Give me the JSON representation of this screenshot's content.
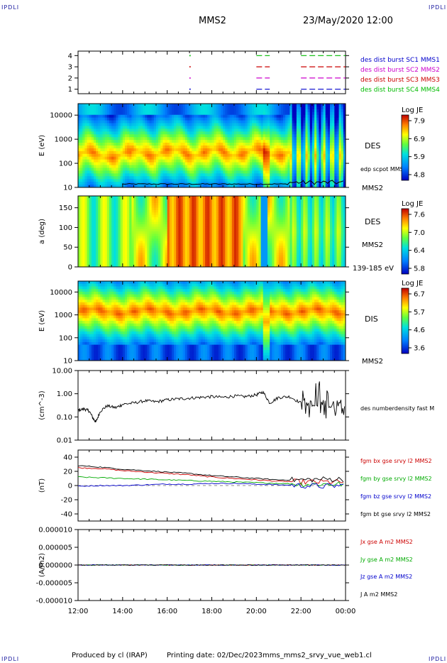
{
  "header": {
    "corner_left": "IPDLI",
    "corner_right": "IPDLI",
    "spacecraft": "MMS2",
    "datetime": "23/May/2020 12:00"
  },
  "footer": {
    "produced_by": "Produced by cl (IRAP)",
    "printing_date": "Printing date: 02/Dec/2023",
    "filename": "mms_mms2_srvy_vue_web1.cl",
    "corner_left": "IPDLI",
    "corner_right": "IPDLI"
  },
  "chart_data": [
    {
      "type": "scatter",
      "panel": "availability",
      "y_ticks": [
        "1",
        "2",
        "3",
        "4"
      ],
      "ylim": [
        0.6,
        4.4
      ],
      "series": [
        {
          "name": "des dist burst SC1 MMS1",
          "color": "#0000cc",
          "y": 1,
          "intervals": [
            [
              20.0,
              20.6
            ],
            [
              22.0,
              24.0
            ]
          ]
        },
        {
          "name": "des dist burst SC2 MMS2",
          "color": "#cc00cc",
          "y": 2,
          "intervals": [
            [
              20.0,
              20.6
            ],
            [
              22.0,
              24.0
            ]
          ]
        },
        {
          "name": "des dist burst SC3 MMS3",
          "color": "#cc0000",
          "y": 3,
          "intervals": [
            [
              20.0,
              20.6
            ],
            [
              22.0,
              24.0
            ]
          ]
        },
        {
          "name": "des dist burst SC4 MMS4",
          "color": "#00bb00",
          "y": 4,
          "intervals": [
            [
              20.0,
              20.6
            ],
            [
              22.0,
              24.0
            ]
          ]
        }
      ],
      "markers_x": [
        17.0
      ]
    },
    {
      "type": "heatmap",
      "panel": "des-energy",
      "ylabel": "E (eV)",
      "y_ticks": [
        "10",
        "100",
        "1000",
        "10000"
      ],
      "ylim_log": [
        10,
        30000
      ],
      "side_label": "DES",
      "side_label2": "MMS2",
      "overlay_label": "edp scpot MMS2",
      "colorbar": {
        "title": "Log JE",
        "ticks": [
          "7.9",
          "6.9",
          "5.9",
          "4.8"
        ]
      }
    },
    {
      "type": "heatmap",
      "panel": "des-pitch",
      "ylabel": "a (deg)",
      "y_ticks": [
        "0",
        "50",
        "100",
        "150"
      ],
      "ylim": [
        0,
        180
      ],
      "side_label": "DES",
      "side_label2": "MMS2",
      "side_label3": "139-185 eV",
      "colorbar": {
        "title": "Log JE",
        "ticks": [
          "7.6",
          "7.0",
          "6.4",
          "5.8"
        ]
      }
    },
    {
      "type": "heatmap",
      "panel": "dis-energy",
      "ylabel": "E (eV)",
      "y_ticks": [
        "10",
        "100",
        "1000",
        "10000"
      ],
      "ylim_log": [
        10,
        30000
      ],
      "side_label": "DIS",
      "side_label2": "MMS2",
      "colorbar": {
        "title": "Log JE",
        "ticks": [
          "6.7",
          "5.7",
          "4.6",
          "3.6"
        ]
      }
    },
    {
      "type": "line",
      "panel": "density",
      "ylabel": "(cm^-3)",
      "y_ticks": [
        "0.01",
        "0.10",
        "1.00",
        "10.00"
      ],
      "ylim_log": [
        0.01,
        10
      ],
      "series": [
        {
          "name": "des numberdensity fast M",
          "color": "#000000",
          "x": [
            12.0,
            12.3,
            12.5,
            12.7,
            12.8,
            13.0,
            13.3,
            13.7,
            14.0,
            14.5,
            15.0,
            15.5,
            16.0,
            16.5,
            17.0,
            17.5,
            18.0,
            18.5,
            19.0,
            19.5,
            20.0,
            20.3,
            20.6,
            21.0,
            21.5,
            22.0,
            22.5,
            23.0,
            23.5,
            24.0
          ],
          "y": [
            0.2,
            0.22,
            0.18,
            0.08,
            0.06,
            0.18,
            0.3,
            0.25,
            0.35,
            0.4,
            0.5,
            0.45,
            0.55,
            0.6,
            0.65,
            0.7,
            0.75,
            0.7,
            0.8,
            0.75,
            0.9,
            1.2,
            0.4,
            0.7,
            0.75,
            0.4,
            0.3,
            0.35,
            0.28,
            0.3
          ]
        }
      ]
    },
    {
      "type": "line",
      "panel": "magnetic-field",
      "ylabel": "(nT)",
      "y_ticks": [
        "-40",
        "-20",
        "0",
        "20",
        "40"
      ],
      "ylim": [
        -50,
        50
      ],
      "series": [
        {
          "name": "fgm bx gse srvy l2 MMS2",
          "color": "#cc0000",
          "x": [
            12.0,
            13.0,
            14.0,
            15.0,
            16.0,
            17.0,
            18.0,
            19.0,
            20.0,
            21.0,
            22.0,
            23.0,
            24.0
          ],
          "y": [
            25,
            24,
            21,
            19,
            17,
            15,
            12,
            10,
            8,
            6,
            5,
            5,
            5
          ]
        },
        {
          "name": "fgm by gse srvy l2 MMS2",
          "color": "#00aa00",
          "x": [
            12.0,
            13.0,
            14.0,
            15.0,
            16.0,
            17.0,
            18.0,
            19.0,
            20.0,
            21.0,
            22.0,
            23.0,
            24.0
          ],
          "y": [
            12,
            11,
            10,
            9,
            8,
            7,
            6,
            5,
            4,
            3,
            2,
            2,
            2
          ]
        },
        {
          "name": "fgm bz gse srvy l2 MMS2",
          "color": "#0000cc",
          "x": [
            12.0,
            13.0,
            14.0,
            15.0,
            16.0,
            17.0,
            18.0,
            19.0,
            20.0,
            21.0,
            22.0,
            23.0,
            24.0
          ],
          "y": [
            -1,
            0,
            0,
            1,
            2,
            2,
            3,
            3,
            2,
            1,
            0,
            -1,
            0
          ]
        },
        {
          "name": "fgm bt gse srvy l2 MMS2",
          "color": "#000000",
          "x": [
            12.0,
            13.0,
            14.0,
            15.0,
            16.0,
            17.0,
            18.0,
            19.0,
            20.0,
            21.0,
            22.0,
            23.0,
            24.0
          ],
          "y": [
            28,
            26,
            23,
            21,
            19,
            17,
            14,
            12,
            10,
            8,
            8,
            9,
            9
          ]
        }
      ]
    },
    {
      "type": "line",
      "panel": "current-density",
      "ylabel": "(A/m2)",
      "y_ticks": [
        "-0.000010",
        "-0.000005",
        "0.000000",
        "0.000005",
        "0.000010"
      ],
      "ylim": [
        -1e-05,
        1e-05
      ],
      "series": [
        {
          "name": "Jx gse A m2 MMS2",
          "color": "#cc0000",
          "x": [
            12,
            24
          ],
          "y": [
            0,
            0
          ]
        },
        {
          "name": "Jy gse A m2 MMS2",
          "color": "#00aa00",
          "x": [
            12,
            24
          ],
          "y": [
            0,
            0
          ]
        },
        {
          "name": "Jz gse A m2 MMS2",
          "color": "#0000cc",
          "x": [
            12,
            24
          ],
          "y": [
            0,
            0
          ]
        },
        {
          "name": "J A m2 MMS2",
          "color": "#000000",
          "x": [
            12,
            24
          ],
          "y": [
            0,
            0
          ]
        }
      ]
    }
  ],
  "x_axis": {
    "ticks": [
      "12:00",
      "14:00",
      "16:00",
      "18:00",
      "20:00",
      "22:00",
      "00:00"
    ],
    "xlim": [
      12,
      24
    ]
  }
}
